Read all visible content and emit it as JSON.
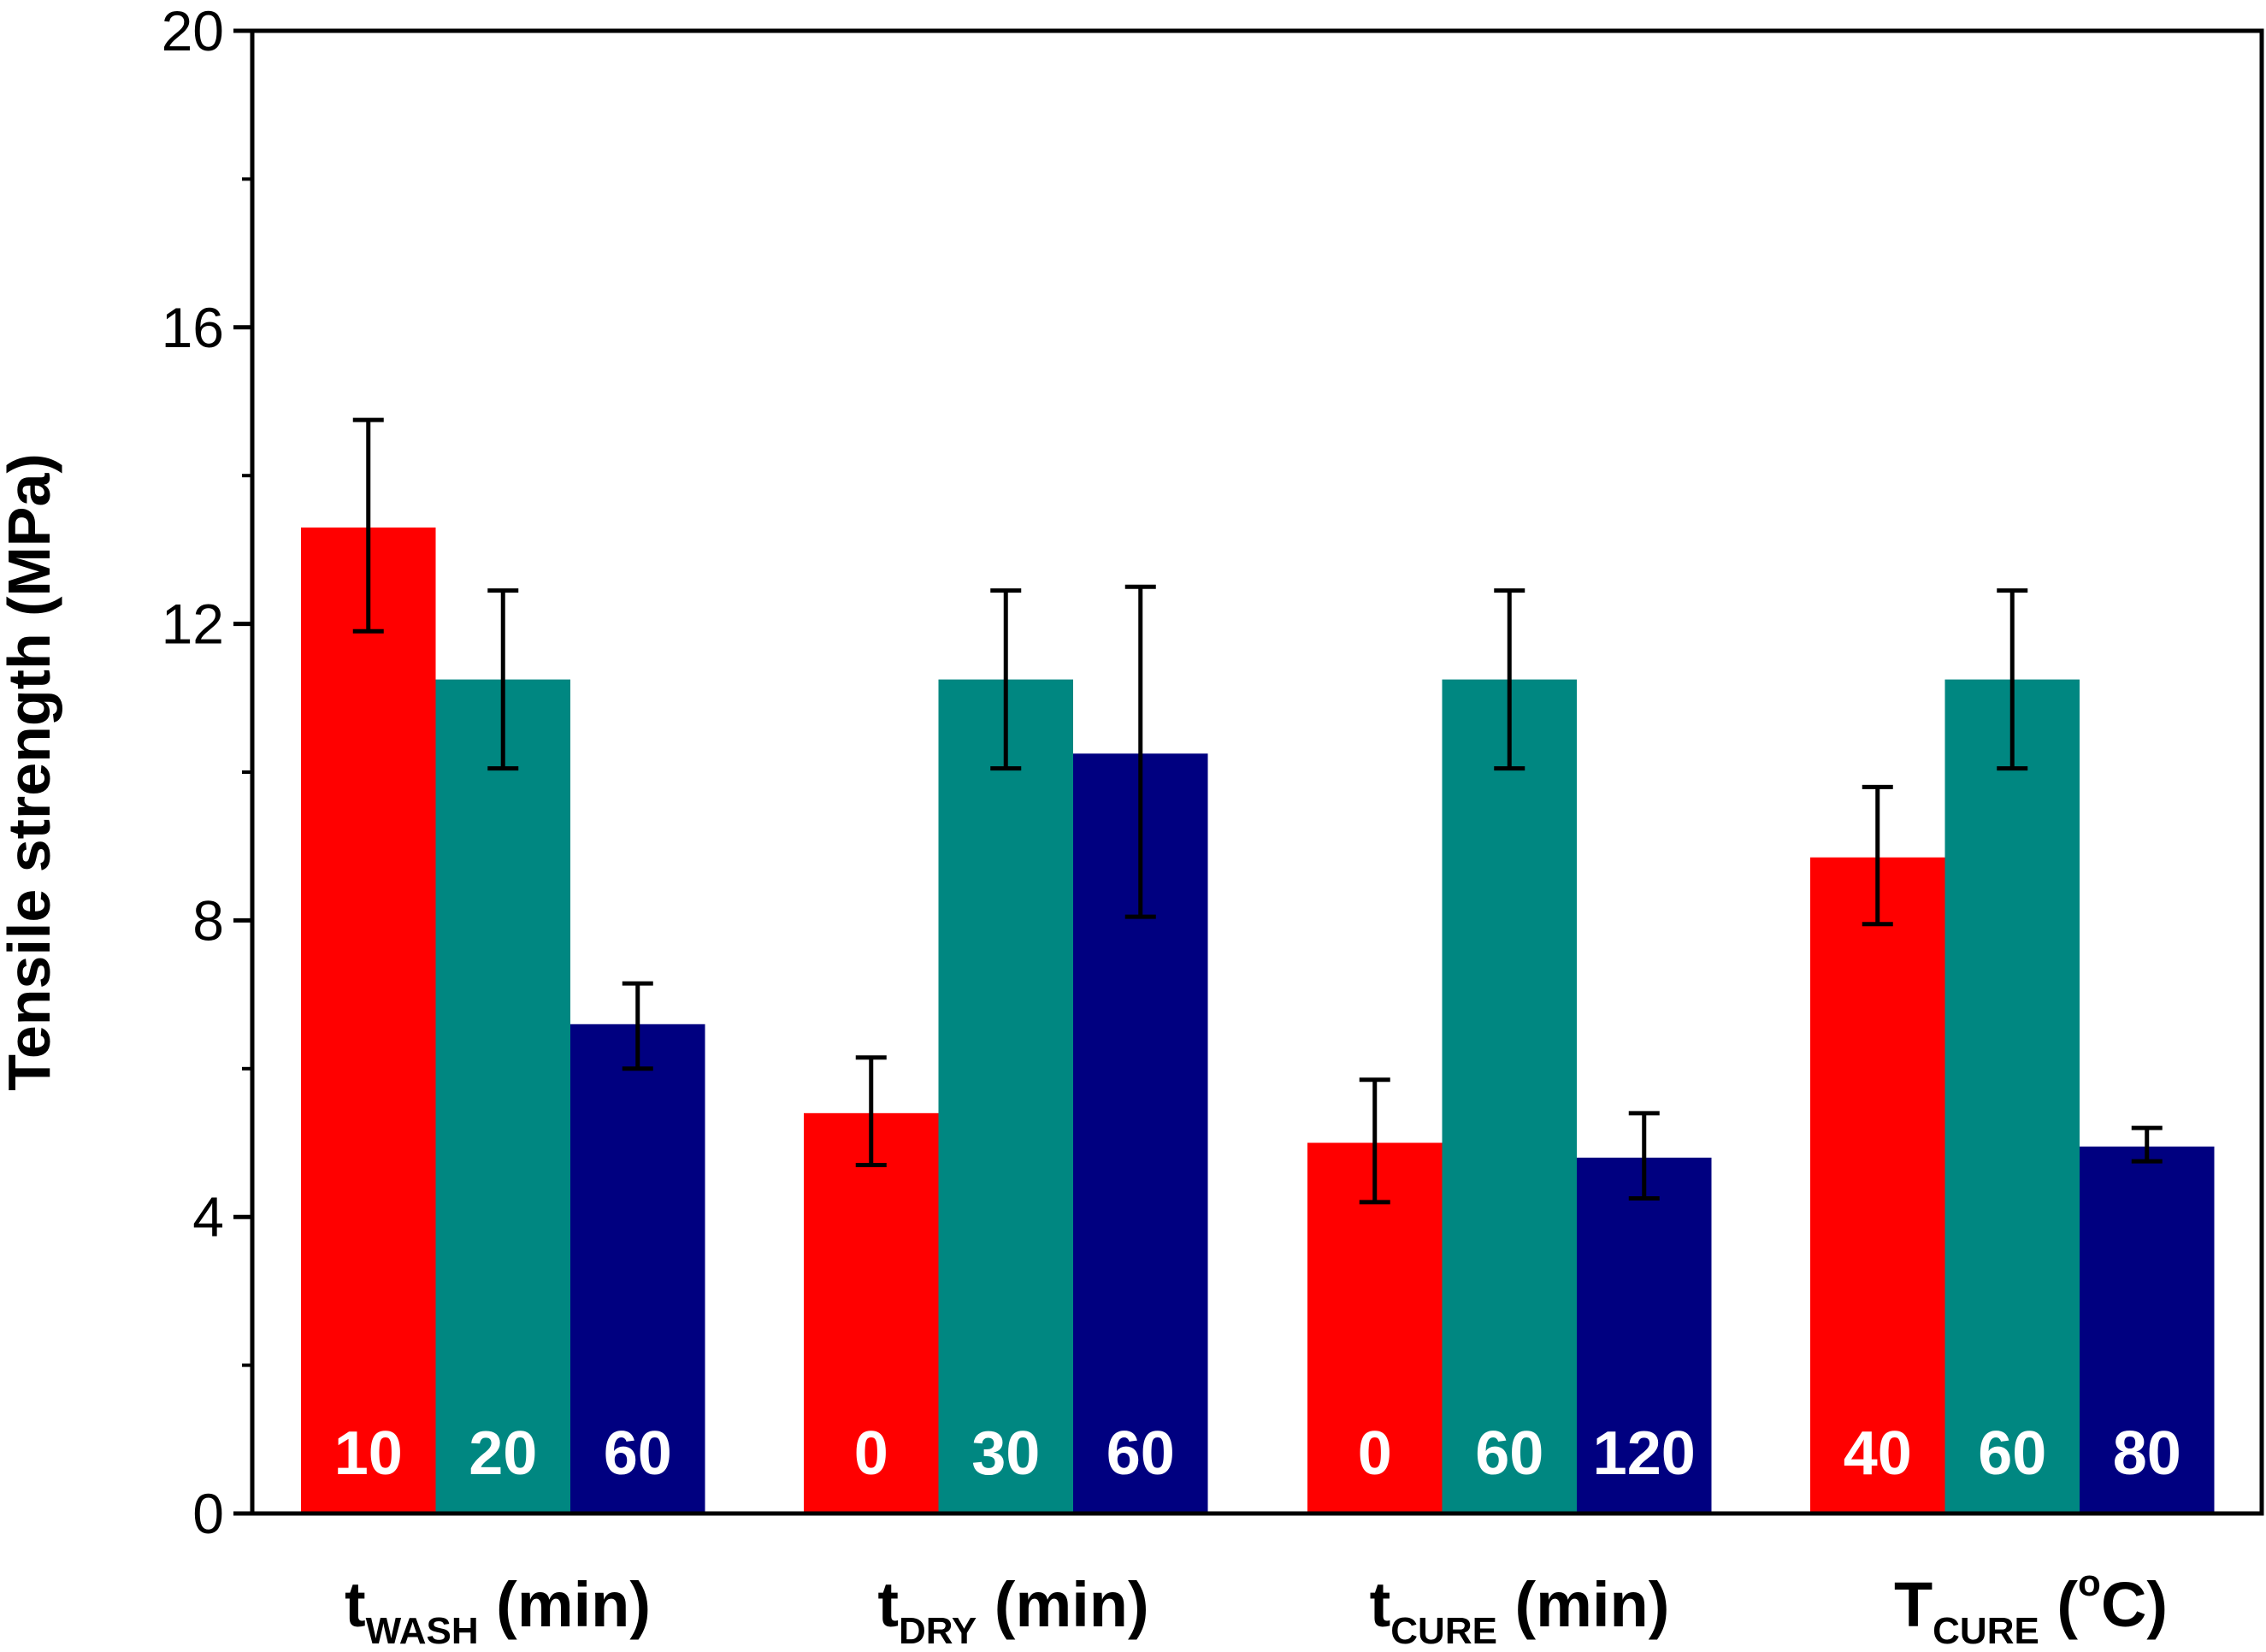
{
  "chart_data": {
    "type": "bar",
    "title": "",
    "ylabel": "Tensile strength (MPa)",
    "xlabel": "",
    "ylim": [
      0,
      20
    ],
    "yticks": [
      0,
      4,
      8,
      12,
      16,
      20
    ],
    "grid": false,
    "colors": [
      "#ff0000",
      "#008781",
      "#000080"
    ],
    "groups": [
      {
        "label_main": "t",
        "label_sub": "WASH",
        "label_unit": " (min)",
        "bars": [
          {
            "label": "10",
            "value": 13.3,
            "err_low": 11.9,
            "err_high": 14.75
          },
          {
            "label": "20",
            "value": 11.25,
            "err_low": 10.05,
            "err_high": 12.45
          },
          {
            "label": "60",
            "value": 6.6,
            "err_low": 6.0,
            "err_high": 7.15
          }
        ]
      },
      {
        "label_main": "t",
        "label_sub": "DRY",
        "label_unit": " (min)",
        "bars": [
          {
            "label": "0",
            "value": 5.4,
            "err_low": 4.7,
            "err_high": 6.15
          },
          {
            "label": "30",
            "value": 11.25,
            "err_low": 10.05,
            "err_high": 12.45
          },
          {
            "label": "60",
            "value": 10.25,
            "err_low": 8.05,
            "err_high": 12.5
          }
        ]
      },
      {
        "label_main": "t",
        "label_sub": "CURE",
        "label_unit": " (min)",
        "bars": [
          {
            "label": "0",
            "value": 5.0,
            "err_low": 4.2,
            "err_high": 5.85
          },
          {
            "label": "60",
            "value": 11.25,
            "err_low": 10.05,
            "err_high": 12.45
          },
          {
            "label": "120",
            "value": 4.8,
            "err_low": 4.25,
            "err_high": 5.4
          }
        ]
      },
      {
        "label_main": "T",
        "label_sub": "CURE",
        "label_unit_open": " (",
        "label_sup": "o",
        "label_unit_close": "C)",
        "bars": [
          {
            "label": "40",
            "value": 8.85,
            "err_low": 7.95,
            "err_high": 9.8
          },
          {
            "label": "60",
            "value": 11.25,
            "err_low": 10.05,
            "err_high": 12.45
          },
          {
            "label": "80",
            "value": 4.95,
            "err_low": 4.75,
            "err_high": 5.2
          }
        ]
      }
    ]
  }
}
